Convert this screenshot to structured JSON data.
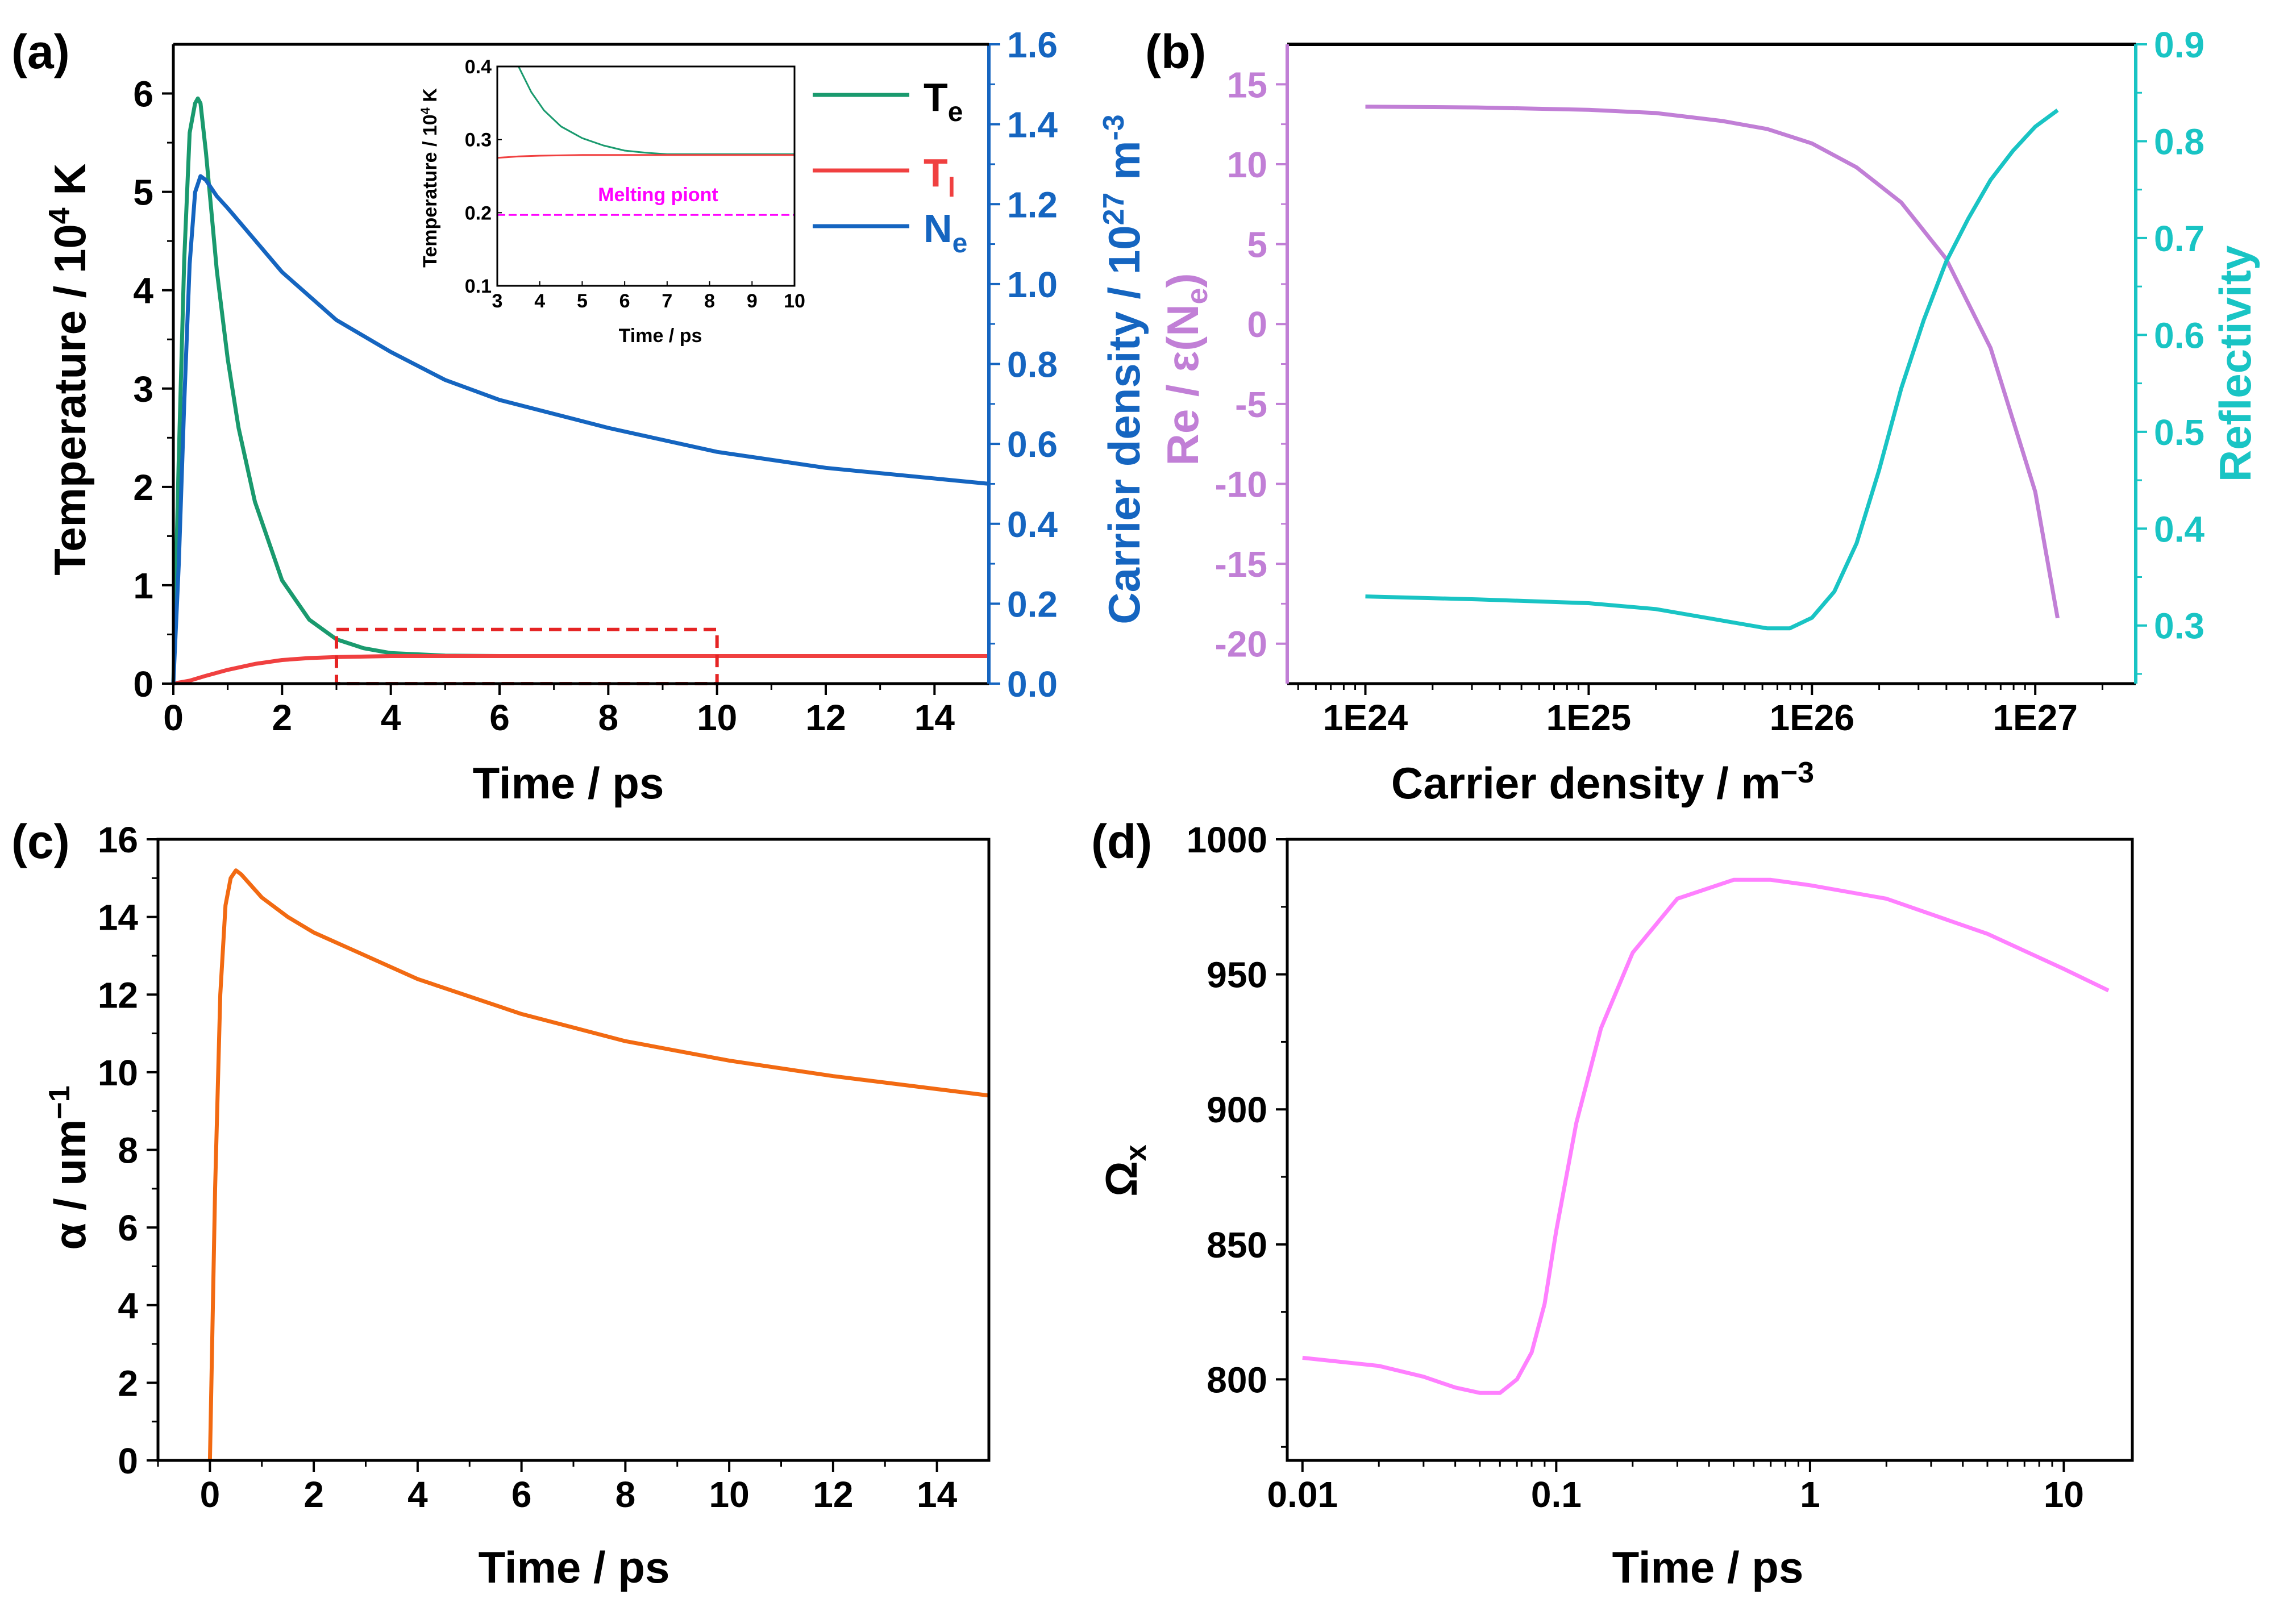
{
  "colors": {
    "Te": "#1a9a6e",
    "Tl": "#f04040",
    "Ne": "#1565c0",
    "box": "#e52424",
    "melt": "#ff00ff",
    "perm": "#c17fd6",
    "refl": "#19c4c4",
    "alpha": "#f26a12",
    "omega": "#ff80ff",
    "axis": "#000000"
  },
  "chart_data": [
    {
      "panel": "(a)",
      "type": "line",
      "xlabel": "Time / ps",
      "xlim": [
        0,
        15
      ],
      "xticks": [
        "0",
        "2",
        "4",
        "6",
        "8",
        "10",
        "12",
        "14"
      ],
      "ylabel_left": "Temperature / 10^4 K",
      "ylim_left": [
        0,
        6.5
      ],
      "yticks_left": [
        "0",
        "1",
        "2",
        "3",
        "4",
        "5",
        "6"
      ],
      "ylabel_right": "Carrier density / 10^27 m^-3",
      "ylim_right": [
        0,
        1.6
      ],
      "yticks_right": [
        "0.0",
        "0.2",
        "0.4",
        "0.6",
        "0.8",
        "1.0",
        "1.2",
        "1.4",
        "1.6"
      ],
      "series": [
        {
          "name": "Te",
          "axis": "left",
          "x": [
            0,
            0.1,
            0.2,
            0.3,
            0.4,
            0.45,
            0.5,
            0.6,
            0.7,
            0.8,
            1.0,
            1.2,
            1.5,
            2.0,
            2.5,
            3.0,
            3.5,
            4.0,
            5.0,
            6.0,
            8.0,
            10.0,
            12.0,
            15.0
          ],
          "y": [
            0,
            2.3,
            4.3,
            5.6,
            5.9,
            5.95,
            5.9,
            5.4,
            4.8,
            4.2,
            3.3,
            2.6,
            1.85,
            1.05,
            0.65,
            0.45,
            0.36,
            0.31,
            0.285,
            0.28,
            0.28,
            0.28,
            0.28,
            0.28
          ]
        },
        {
          "name": "Tl",
          "axis": "left",
          "x": [
            0,
            0.3,
            0.6,
            1.0,
            1.5,
            2.0,
            2.5,
            3.0,
            4.0,
            5.0,
            6.0,
            8.0,
            10.0,
            15.0
          ],
          "y": [
            0,
            0.03,
            0.08,
            0.14,
            0.2,
            0.24,
            0.26,
            0.27,
            0.28,
            0.28,
            0.28,
            0.28,
            0.28,
            0.28
          ]
        },
        {
          "name": "Ne",
          "axis": "right",
          "x": [
            0,
            0.1,
            0.2,
            0.3,
            0.4,
            0.5,
            0.6,
            0.8,
            1.0,
            1.5,
            2.0,
            3.0,
            4.0,
            5.0,
            6.0,
            8.0,
            10.0,
            12.0,
            15.0
          ],
          "y": [
            0,
            0.3,
            0.7,
            1.05,
            1.23,
            1.27,
            1.26,
            1.22,
            1.19,
            1.11,
            1.03,
            0.91,
            0.83,
            0.76,
            0.71,
            0.64,
            0.58,
            0.54,
            0.5
          ]
        }
      ],
      "legend": [
        {
          "name": "Te",
          "main": "T",
          "sub": "e"
        },
        {
          "name": "Tl",
          "main": "T",
          "sub": "l"
        },
        {
          "name": "Ne",
          "main": "N",
          "sub": "e"
        }
      ],
      "zoom_box": {
        "x": [
          3,
          10
        ],
        "y": [
          0,
          0.55
        ]
      },
      "inset": {
        "xlabel": "Time / ps",
        "ylabel": "Temperature / 10^4 K",
        "xlim": [
          3,
          10
        ],
        "ylim": [
          0.1,
          0.4
        ],
        "xticks": [
          "3",
          "4",
          "5",
          "6",
          "7",
          "8",
          "9",
          "10"
        ],
        "yticks": [
          "0.1",
          "0.2",
          "0.3",
          "0.4"
        ],
        "annotation": "Melting piont",
        "melting_point": 0.197,
        "Te": {
          "x": [
            3.5,
            3.8,
            4.1,
            4.5,
            5.0,
            5.5,
            6.0,
            6.5,
            7.0,
            8.0,
            10.0
          ],
          "y": [
            0.4,
            0.365,
            0.34,
            0.318,
            0.302,
            0.292,
            0.285,
            0.282,
            0.28,
            0.28,
            0.28
          ]
        },
        "Tl": {
          "x": [
            3.0,
            3.5,
            4.0,
            5.0,
            6.0,
            8.0,
            10.0
          ],
          "y": [
            0.275,
            0.277,
            0.278,
            0.279,
            0.279,
            0.279,
            0.279
          ]
        }
      }
    },
    {
      "panel": "(b)",
      "type": "line",
      "xlabel": "Carrier density / m^-3",
      "xscale": "log",
      "xlim_log10": [
        23.65,
        27.45
      ],
      "xticks": [
        "1E24",
        "1E25",
        "1E26",
        "1E27"
      ],
      "ylabel_left": "Re / ε(Ne)",
      "ylim_left": [
        -22.5,
        17.5
      ],
      "yticks_left": [
        "15",
        "10",
        "5",
        "0",
        "-5",
        "-10",
        "-15",
        "-20"
      ],
      "ylabel_right": "Reflectivity",
      "ylim_right": [
        0.24,
        0.9
      ],
      "yticks_right": [
        "0.3",
        "0.4",
        "0.5",
        "0.6",
        "0.7",
        "0.8",
        "0.9"
      ],
      "series": [
        {
          "name": "Re / ε(Ne)",
          "axis": "left",
          "log10x": [
            24,
            24.5,
            25,
            25.3,
            25.6,
            25.8,
            26,
            26.2,
            26.4,
            26.6,
            26.8,
            27,
            27.1
          ],
          "y": [
            13.6,
            13.55,
            13.4,
            13.2,
            12.7,
            12.2,
            11.3,
            9.8,
            7.6,
            4.1,
            -1.5,
            -10.5,
            -18.4
          ]
        },
        {
          "name": "Reflectivity",
          "axis": "right",
          "log10x": [
            24,
            24.5,
            25,
            25.3,
            25.6,
            25.8,
            25.9,
            26,
            26.1,
            26.2,
            26.3,
            26.4,
            26.5,
            26.6,
            26.7,
            26.8,
            26.9,
            27,
            27.1
          ],
          "y": [
            0.33,
            0.327,
            0.323,
            0.317,
            0.305,
            0.297,
            0.297,
            0.308,
            0.335,
            0.385,
            0.46,
            0.545,
            0.615,
            0.675,
            0.72,
            0.76,
            0.79,
            0.815,
            0.832
          ]
        }
      ]
    },
    {
      "panel": "(c)",
      "type": "line",
      "xlabel": "Time / ps",
      "xlim": [
        -1,
        15
      ],
      "xticks": [
        "0",
        "2",
        "4",
        "6",
        "8",
        "10",
        "12",
        "14"
      ],
      "ylabel": "α / um^-1",
      "ylim": [
        0,
        16
      ],
      "yticks": [
        "0",
        "2",
        "4",
        "6",
        "8",
        "10",
        "12",
        "14",
        "16"
      ],
      "series": [
        {
          "name": "alpha",
          "x": [
            0,
            0.1,
            0.2,
            0.3,
            0.4,
            0.5,
            0.6,
            0.8,
            1.0,
            1.5,
            2.0,
            3.0,
            4.0,
            6.0,
            8.0,
            10.0,
            12.0,
            15.0
          ],
          "y": [
            0,
            7,
            12,
            14.3,
            15.0,
            15.2,
            15.1,
            14.8,
            14.5,
            14.0,
            13.6,
            13.0,
            12.4,
            11.5,
            10.8,
            10.3,
            9.9,
            9.4
          ]
        }
      ]
    },
    {
      "panel": "(d)",
      "type": "line",
      "xlabel": "Time / ps",
      "xscale": "log",
      "xlim_log10": [
        -2.06,
        1.27
      ],
      "xticks": [
        "0.01",
        "0.1",
        "1",
        "10"
      ],
      "ylabel": "Ωx",
      "ylim": [
        770,
        1000
      ],
      "yticks": [
        "800",
        "850",
        "900",
        "950",
        "1000"
      ],
      "series": [
        {
          "name": "omega",
          "x": [
            0.01,
            0.02,
            0.03,
            0.04,
            0.05,
            0.06,
            0.07,
            0.08,
            0.09,
            0.1,
            0.12,
            0.15,
            0.2,
            0.3,
            0.5,
            0.7,
            1,
            2,
            5,
            10,
            15
          ],
          "y": [
            808,
            805,
            801,
            797,
            795,
            795,
            800,
            810,
            828,
            855,
            895,
            930,
            958,
            978,
            985,
            985,
            983,
            978,
            965,
            952,
            944
          ]
        }
      ]
    }
  ]
}
